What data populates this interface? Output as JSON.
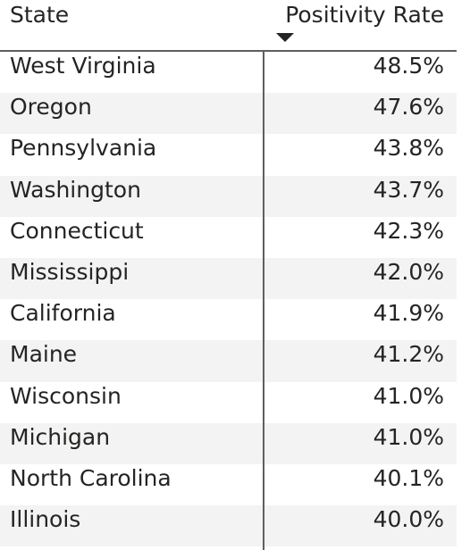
{
  "table": {
    "columns": {
      "state": "State",
      "rate": "Positivity Rate"
    },
    "sort": {
      "column": "Positivity Rate",
      "direction": "descending"
    },
    "rows": [
      {
        "state": "West Virginia",
        "rate": "48.5%"
      },
      {
        "state": "Oregon",
        "rate": "47.6%"
      },
      {
        "state": "Pennsylvania",
        "rate": "43.8%"
      },
      {
        "state": "Washington",
        "rate": "43.7%"
      },
      {
        "state": "Connecticut",
        "rate": "42.3%"
      },
      {
        "state": "Mississippi",
        "rate": "42.0%"
      },
      {
        "state": "California",
        "rate": "41.9%"
      },
      {
        "state": "Maine",
        "rate": "41.2%"
      },
      {
        "state": "Wisconsin",
        "rate": "41.0%"
      },
      {
        "state": "Michigan",
        "rate": "41.0%"
      },
      {
        "state": "North Carolina",
        "rate": "40.1%"
      },
      {
        "state": "Illinois",
        "rate": "40.0%"
      }
    ]
  },
  "colors": {
    "text": "#252423",
    "alt_row": "#f3f3f3",
    "rule": "#605e5c"
  },
  "icons": {
    "sort": "sort-descending-icon"
  }
}
